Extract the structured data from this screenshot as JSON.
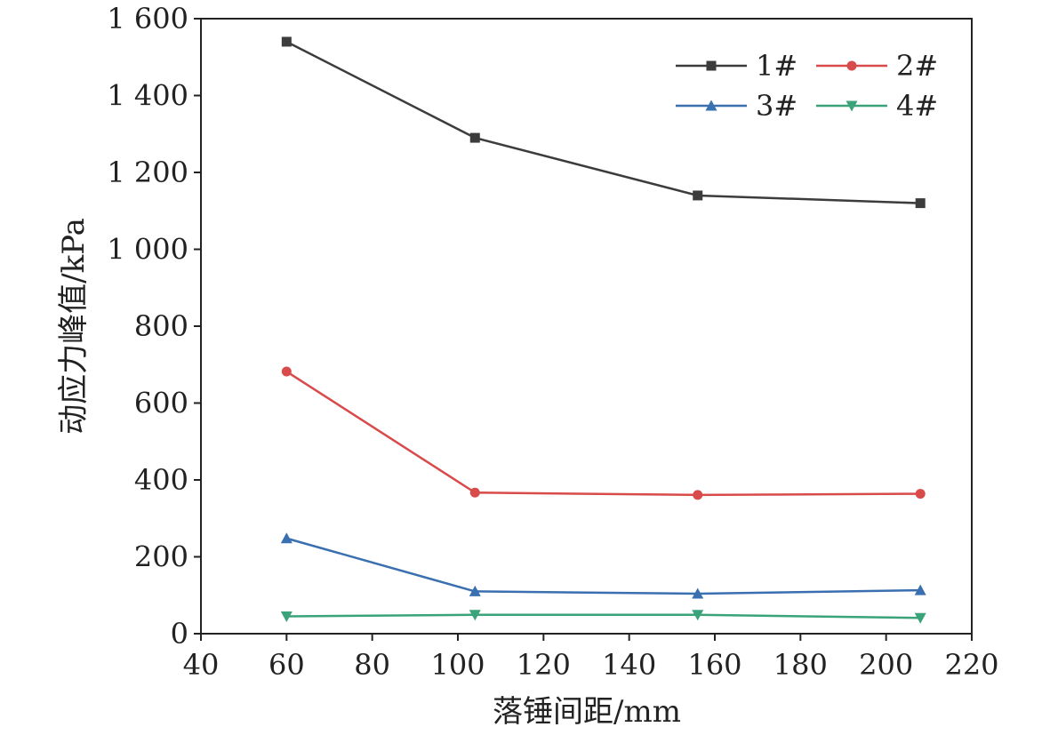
{
  "chart_data": {
    "type": "line",
    "title": "",
    "xlabel": "落锤间距/mm",
    "ylabel": "动应力峰值/kPa",
    "xlim": [
      40,
      220
    ],
    "ylim": [
      0,
      1600
    ],
    "xticks": [
      40,
      60,
      80,
      100,
      120,
      140,
      160,
      180,
      200,
      220
    ],
    "yticks": [
      0,
      200,
      400,
      600,
      800,
      1000,
      1200,
      1400,
      1600
    ],
    "xtick_labels": [
      "40",
      "60",
      "80",
      "100",
      "120",
      "140",
      "160",
      "180",
      "200",
      "220"
    ],
    "ytick_labels": [
      "0",
      "200",
      "400",
      "600",
      "800",
      "1 000",
      "1 200",
      "1 400",
      "1 600"
    ],
    "x": [
      60,
      104,
      156,
      208
    ],
    "grid": false,
    "legend_position": "top-right",
    "series": [
      {
        "name": "1#",
        "color": "#3c3c3c",
        "marker": "square",
        "values": [
          1540,
          1290,
          1140,
          1120
        ]
      },
      {
        "name": "2#",
        "color": "#d94a4a",
        "marker": "circle",
        "values": [
          682,
          367,
          361,
          364
        ]
      },
      {
        "name": "3#",
        "color": "#3a6fb0",
        "marker": "triangle-up",
        "values": [
          248,
          110,
          104,
          113
        ]
      },
      {
        "name": "4#",
        "color": "#3aa37a",
        "marker": "triangle-down",
        "values": [
          45,
          49,
          49,
          41
        ]
      }
    ]
  }
}
